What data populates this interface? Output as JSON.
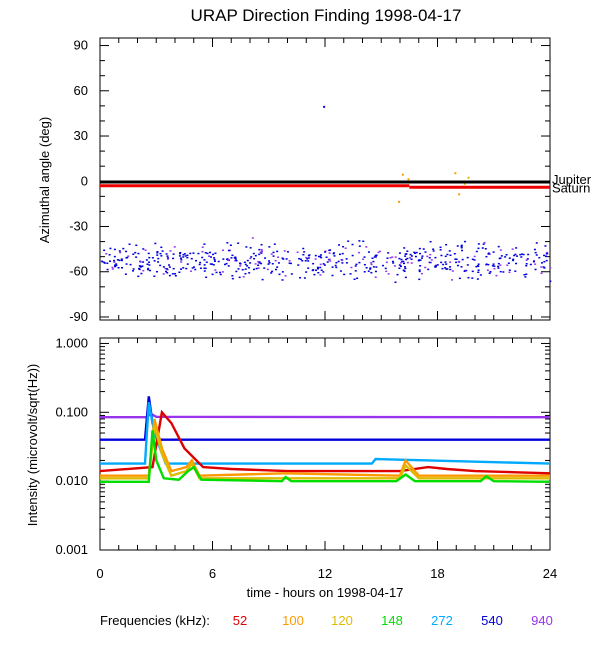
{
  "chart_data": {
    "title": "URAP Direction Finding  1998-04-17",
    "xlabel": "time - hours on 1998-04-17",
    "x_range": [
      0,
      24
    ],
    "x_ticks": [
      0,
      6,
      12,
      18,
      24
    ],
    "legend_label": "Frequencies (kHz):",
    "frequencies": [
      {
        "label": "52",
        "color": "#dd0000"
      },
      {
        "label": "100",
        "color": "#ff9900"
      },
      {
        "label": "120",
        "color": "#ddbb00"
      },
      {
        "label": "148",
        "color": "#00dd00"
      },
      {
        "label": "272",
        "color": "#00aaff"
      },
      {
        "label": "540",
        "color": "#0000dd"
      },
      {
        "label": "940",
        "color": "#9933ee"
      }
    ],
    "panels": [
      {
        "type": "scatter",
        "ylabel": "Azimuthal angle (deg)",
        "ylim": [
          -92,
          95
        ],
        "yticks": [
          90,
          60,
          30,
          0,
          -30,
          -60,
          -90
        ],
        "reference_lines": [
          {
            "name": "Jupiter",
            "label": "Jupiter",
            "color": "#000000",
            "segments": [
              [
                0,
                24,
                -0.5
              ]
            ]
          },
          {
            "name": "Saturn",
            "label": "Saturn",
            "color": "#ee0000",
            "segments": [
              [
                0,
                16.5,
                -3
              ],
              [
                16.5,
                24,
                -4
              ]
            ]
          }
        ],
        "scatter_cloud": {
          "x_range": [
            0,
            24
          ],
          "y_center": -52,
          "y_spread": 8,
          "series": [
            "540",
            "940"
          ]
        },
        "outliers": [
          {
            "x": 11.9,
            "y": 50,
            "series": "540"
          },
          {
            "x": 16.1,
            "y": 5,
            "series": "100"
          },
          {
            "x": 15.9,
            "y": -13,
            "series": "100"
          },
          {
            "x": 16.4,
            "y": 2,
            "series": "100"
          },
          {
            "x": 18.9,
            "y": 6,
            "series": "100"
          },
          {
            "x": 19.6,
            "y": 3,
            "series": "120"
          },
          {
            "x": 19.1,
            "y": -8,
            "series": "100"
          },
          {
            "x": 19.4,
            "y": -1,
            "series": "120"
          }
        ]
      },
      {
        "type": "line",
        "ylabel": "Intensity (microvolt/sqrt(Hz))",
        "yscale": "log",
        "ylim": [
          0.001,
          1.2
        ],
        "ytick_labels": [
          "1.000",
          "0.100",
          "0.010",
          "0.001"
        ],
        "ytick_values": [
          1,
          0.1,
          0.01,
          0.001
        ],
        "series": [
          {
            "name": "940",
            "color": "#9933ee",
            "x": [
              0,
              2.5,
              2.7,
              3.0,
              24
            ],
            "y": [
              0.085,
              0.085,
              0.095,
              0.086,
              0.085
            ]
          },
          {
            "name": "540",
            "color": "#0000dd",
            "x": [
              0,
              2.4,
              2.6,
              2.8,
              3.2,
              24
            ],
            "y": [
              0.04,
              0.04,
              0.17,
              0.07,
              0.04,
              0.04
            ]
          },
          {
            "name": "272",
            "color": "#00aaff",
            "x": [
              0,
              2.4,
              2.6,
              2.9,
              3.5,
              14.5,
              14.7,
              24
            ],
            "y": [
              0.018,
              0.018,
              0.14,
              0.05,
              0.018,
              0.018,
              0.021,
              0.018
            ]
          },
          {
            "name": "52",
            "color": "#dd0000",
            "x": [
              0,
              2.8,
              3.3,
              3.8,
              4.5,
              5.5,
              7,
              10,
              16,
              17.5,
              18.5,
              20,
              24
            ],
            "y": [
              0.014,
              0.016,
              0.1,
              0.07,
              0.03,
              0.016,
              0.015,
              0.014,
              0.014,
              0.016,
              0.015,
              0.014,
              0.013
            ]
          },
          {
            "name": "100",
            "color": "#ff9900",
            "x": [
              0,
              2.6,
              2.9,
              3.3,
              3.8,
              4.6,
              4.9,
              5.3,
              9.8,
              16,
              16.3,
              17,
              24
            ],
            "y": [
              0.012,
              0.012,
              0.08,
              0.03,
              0.014,
              0.016,
              0.02,
              0.012,
              0.013,
              0.012,
              0.02,
              0.012,
              0.012
            ]
          },
          {
            "name": "120",
            "color": "#ddbb00",
            "x": [
              0,
              2.6,
              2.9,
              3.3,
              3.8,
              4.6,
              4.9,
              5.3,
              16,
              16.3,
              17,
              24
            ],
            "y": [
              0.011,
              0.011,
              0.065,
              0.025,
              0.012,
              0.014,
              0.018,
              0.011,
              0.011,
              0.017,
              0.011,
              0.011
            ]
          },
          {
            "name": "148",
            "color": "#00dd00",
            "x": [
              0,
              2.6,
              2.8,
              3.0,
              3.4,
              4.2,
              4.7,
              5.0,
              5.4,
              9.7,
              9.9,
              10.2,
              15.8,
              16.3,
              16.8,
              20.3,
              20.6,
              21,
              24
            ],
            "y": [
              0.0098,
              0.0098,
              0.055,
              0.02,
              0.011,
              0.0105,
              0.014,
              0.016,
              0.0105,
              0.01,
              0.0115,
              0.01,
              0.01,
              0.0125,
              0.01,
              0.01,
              0.0118,
              0.01,
              0.0098
            ]
          }
        ]
      }
    ]
  }
}
